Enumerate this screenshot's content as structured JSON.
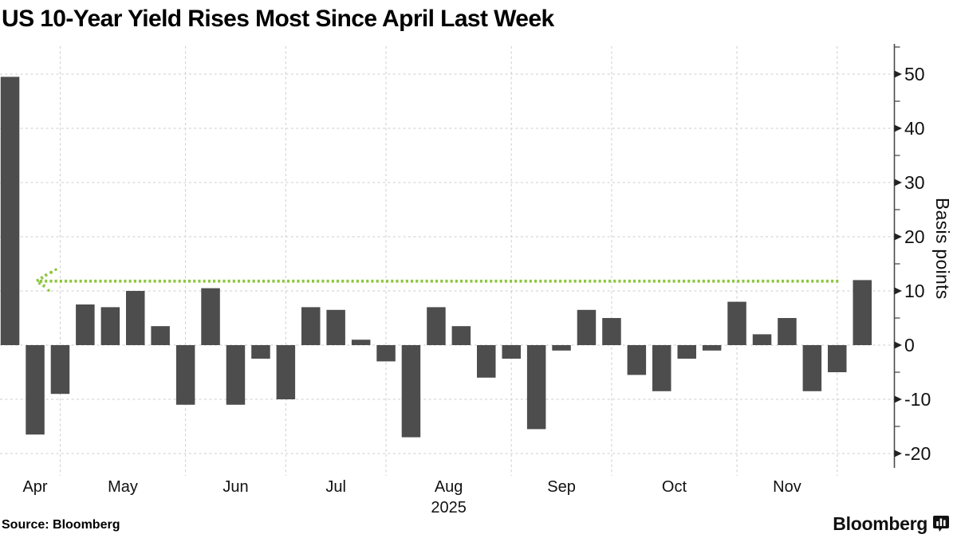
{
  "title": "US 10-Year Yield Rises Most Since April Last Week",
  "source": "Source: Bloomberg",
  "branding": {
    "wordmark": "Bloomberg",
    "icon": "bloomberg-terminal-icon"
  },
  "colors": {
    "bar": "#4d4d4d",
    "grid": "#cccccc",
    "axis": "#4a4a4a",
    "tick_text": "#111111",
    "reference_line": "#8dc63f",
    "title_text": "#000000"
  },
  "chart_data": {
    "type": "bar",
    "title": "US 10-Year Yield Rises Most Since April Last Week",
    "xlabel": "",
    "ylabel": "Basis points",
    "unit": "basis points (weekly change in US 10-year yield)",
    "grid": true,
    "legend": false,
    "values": [
      49.5,
      -16.5,
      -9,
      7.5,
      7,
      10,
      3.5,
      -11,
      10.5,
      -11,
      -2.5,
      -10,
      7,
      6.5,
      1,
      -3,
      -17,
      7,
      3.5,
      -6,
      -2.5,
      -15.5,
      -1,
      6.5,
      5,
      -5.5,
      -8.5,
      -2.5,
      -1,
      8,
      2,
      5,
      -8.5,
      -5,
      12
    ],
    "x_axis": {
      "year_label": "2025",
      "year_under_month": "Aug",
      "month_labels": [
        "Apr",
        "May",
        "Jun",
        "Jul",
        "Aug",
        "Sep",
        "Oct",
        "Nov"
      ],
      "month_label_week": [
        2,
        5.5,
        10,
        14,
        18.5,
        23,
        27.5,
        32
      ],
      "month_boundary_week": [
        3,
        8,
        12,
        16,
        21,
        25,
        30,
        34
      ]
    },
    "y_axis": {
      "tick_labels": [
        50,
        40,
        30,
        20,
        10,
        0,
        -10,
        -20
      ],
      "minor_ticks": [
        55,
        45,
        35,
        25,
        15,
        5,
        -5,
        -15
      ],
      "ylim": [
        -22.5,
        55.5
      ],
      "side": "right"
    },
    "reference_line": {
      "value": 11.8,
      "style": "dotted",
      "arrow": "left",
      "span_weeks": [
        2,
        34
      ],
      "color": "#8dc63f"
    }
  }
}
